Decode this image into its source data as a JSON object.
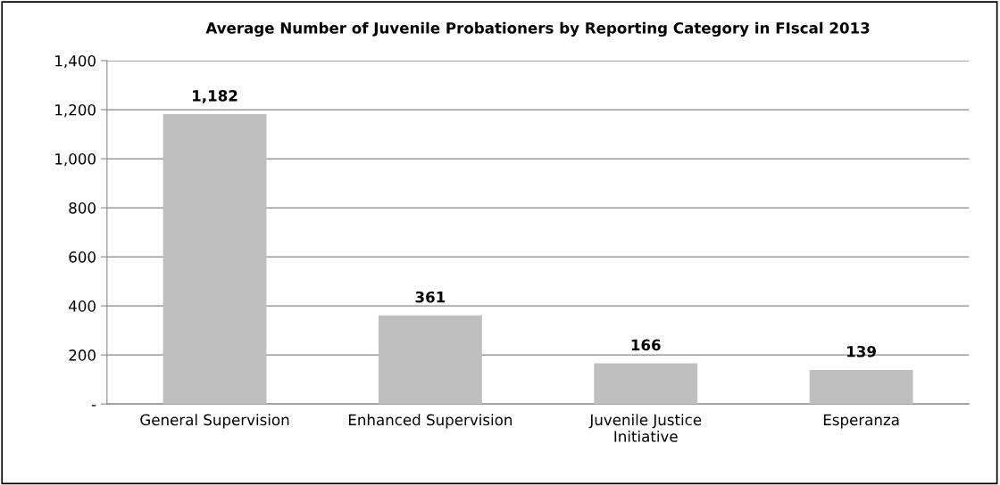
{
  "chart_data": {
    "type": "bar",
    "title": "Average Number of Juvenile Probationers by Reporting Category in FIscal 2013",
    "categories": [
      "General Supervision",
      "Enhanced Supervision",
      "Juvenile Justice Initiative",
      "Esperanza"
    ],
    "values": [
      1182,
      361,
      166,
      139
    ],
    "color": "#bfbfbf",
    "value_labels": [
      "1,182",
      "361",
      "166",
      "139"
    ],
    "ylim": [
      0,
      1400
    ],
    "yticks": [
      {
        "value": 0,
        "label": "-"
      },
      {
        "value": 200,
        "label": "200"
      },
      {
        "value": 400,
        "label": "400"
      },
      {
        "value": 600,
        "label": "600"
      },
      {
        "value": 800,
        "label": "800"
      },
      {
        "value": 1000,
        "label": "1,000"
      },
      {
        "value": 1200,
        "label": "1,200"
      },
      {
        "value": 1400,
        "label": "1,400"
      }
    ],
    "grid": "y"
  }
}
